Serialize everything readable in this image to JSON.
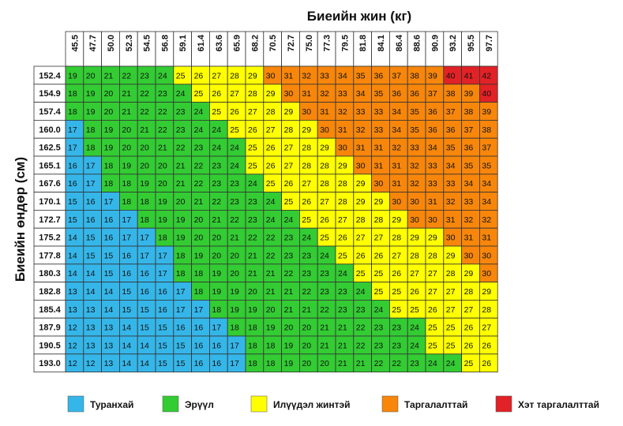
{
  "chart_data": {
    "type": "heatmap",
    "title": "",
    "xlabel": "Биеийн жин (кг)",
    "ylabel": "Биеийн өндөр (см)",
    "x": [
      "45.5",
      "47.7",
      "50.0",
      "52.3",
      "54.5",
      "56.8",
      "59.1",
      "61.4",
      "63.6",
      "65.9",
      "68.2",
      "70.5",
      "72.7",
      "75.0",
      "77.3",
      "79.5",
      "81.8",
      "84.1",
      "86.4",
      "88.6",
      "90.9",
      "93.2",
      "95.5",
      "97.7"
    ],
    "y": [
      "152.4",
      "154.9",
      "157.4",
      "160.0",
      "162.5",
      "165.1",
      "167.6",
      "170.1",
      "172.7",
      "175.2",
      "177.8",
      "180.3",
      "182.8",
      "185.4",
      "187.9",
      "190.5",
      "193.0"
    ],
    "values": [
      [
        19,
        20,
        21,
        22,
        23,
        24,
        25,
        26,
        27,
        28,
        29,
        30,
        31,
        32,
        33,
        34,
        35,
        36,
        37,
        38,
        39,
        40,
        41,
        42
      ],
      [
        18,
        19,
        20,
        21,
        22,
        23,
        24,
        25,
        26,
        27,
        28,
        29,
        30,
        31,
        32,
        33,
        34,
        35,
        36,
        36,
        37,
        38,
        39,
        40
      ],
      [
        18,
        19,
        20,
        21,
        22,
        22,
        23,
        24,
        25,
        26,
        27,
        28,
        29,
        30,
        31,
        32,
        33,
        33,
        34,
        35,
        36,
        37,
        38,
        39
      ],
      [
        17,
        18,
        19,
        20,
        21,
        22,
        23,
        24,
        24,
        25,
        26,
        27,
        28,
        29,
        30,
        31,
        32,
        33,
        34,
        35,
        36,
        36,
        37,
        38
      ],
      [
        17,
        18,
        19,
        20,
        20,
        21,
        22,
        23,
        24,
        24,
        25,
        26,
        27,
        28,
        29,
        30,
        31,
        31,
        32,
        33,
        34,
        35,
        36,
        37
      ],
      [
        16,
        17,
        18,
        19,
        20,
        20,
        21,
        22,
        23,
        24,
        25,
        26,
        27,
        28,
        28,
        29,
        30,
        31,
        31,
        32,
        33,
        34,
        35,
        35
      ],
      [
        16,
        17,
        18,
        18,
        19,
        20,
        21,
        22,
        23,
        23,
        24,
        25,
        26,
        27,
        28,
        28,
        29,
        30,
        31,
        32,
        33,
        33,
        34,
        34
      ],
      [
        15,
        16,
        17,
        18,
        18,
        19,
        20,
        21,
        22,
        23,
        23,
        24,
        25,
        26,
        27,
        28,
        29,
        29,
        30,
        30,
        31,
        32,
        33,
        34
      ],
      [
        15,
        16,
        16,
        17,
        18,
        19,
        19,
        20,
        21,
        22,
        23,
        24,
        24,
        25,
        26,
        27,
        28,
        28,
        29,
        30,
        30,
        31,
        32,
        32
      ],
      [
        14,
        15,
        16,
        17,
        17,
        18,
        19,
        20,
        20,
        21,
        22,
        22,
        23,
        24,
        25,
        26,
        27,
        27,
        28,
        29,
        29,
        30,
        31,
        31
      ],
      [
        14,
        15,
        15,
        16,
        17,
        17,
        18,
        19,
        20,
        20,
        21,
        22,
        23,
        23,
        24,
        25,
        26,
        26,
        27,
        28,
        28,
        29,
        30,
        30
      ],
      [
        14,
        14,
        15,
        16,
        16,
        17,
        18,
        18,
        19,
        20,
        21,
        21,
        22,
        23,
        23,
        24,
        25,
        25,
        26,
        27,
        27,
        28,
        29,
        30
      ],
      [
        13,
        14,
        14,
        15,
        16,
        16,
        17,
        18,
        19,
        19,
        20,
        21,
        21,
        22,
        23,
        23,
        24,
        25,
        25,
        26,
        27,
        27,
        28,
        29
      ],
      [
        13,
        13,
        14,
        15,
        15,
        16,
        17,
        17,
        18,
        19,
        19,
        20,
        21,
        21,
        22,
        23,
        23,
        24,
        25,
        25,
        26,
        27,
        27,
        28
      ],
      [
        12,
        13,
        13,
        14,
        15,
        15,
        16,
        16,
        17,
        18,
        18,
        19,
        20,
        20,
        21,
        21,
        22,
        23,
        23,
        24,
        25,
        25,
        26,
        27
      ],
      [
        12,
        13,
        13,
        14,
        14,
        15,
        15,
        16,
        16,
        17,
        18,
        18,
        19,
        20,
        21,
        21,
        22,
        23,
        23,
        24,
        25,
        25,
        26,
        26
      ],
      [
        12,
        12,
        13,
        14,
        14,
        15,
        15,
        16,
        16,
        17,
        18,
        18,
        19,
        20,
        20,
        21,
        21,
        22,
        22,
        23,
        24,
        24,
        25,
        26
      ]
    ],
    "legend": [
      {
        "label": "Туранхай",
        "color": "#35b6e9",
        "range": [
          0,
          18
        ]
      },
      {
        "label": "Эрүүл",
        "color": "#33cc33",
        "range": [
          18,
          25
        ]
      },
      {
        "label": "Илүүдэл жинтэй",
        "color": "#ffff00",
        "range": [
          25,
          30
        ]
      },
      {
        "label": "Таргалалттай",
        "color": "#f7860b",
        "range": [
          30,
          40
        ]
      },
      {
        "label": "Хэт таргалалттай",
        "color": "#e12226",
        "range": [
          40,
          100
        ]
      }
    ],
    "legend_position": "bottom",
    "grid": true
  },
  "colors": {
    "underweight": "#35b6e9",
    "normal": "#33cc33",
    "overweight": "#ffff00",
    "obese": "#f7860b",
    "extreme": "#e12226",
    "grid": "#333333"
  }
}
